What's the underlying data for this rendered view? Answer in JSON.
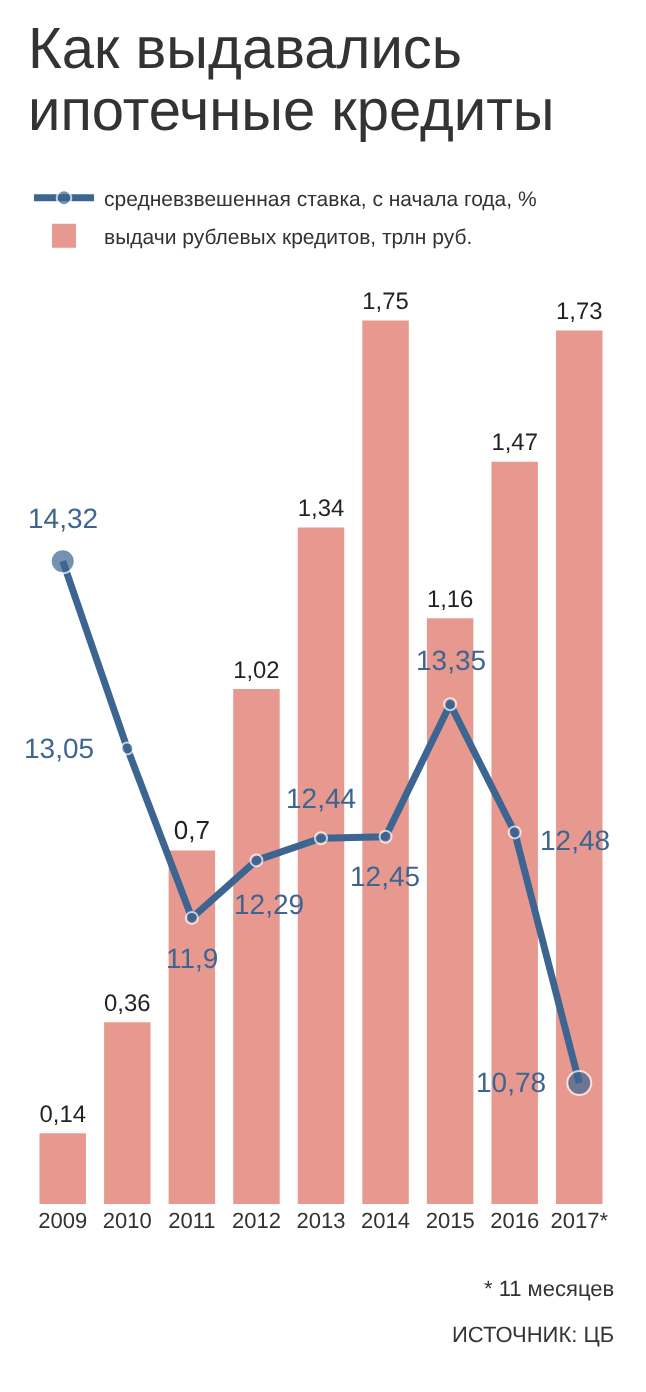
{
  "chart_data": {
    "type": "bar",
    "title": "Как выдавались ипотечные кредиты",
    "categories": [
      "2009",
      "2010",
      "2011",
      "2012",
      "2013",
      "2014",
      "2015",
      "2016",
      "2017*"
    ],
    "series": [
      {
        "name": "выдачи рублевых кредитов, трлн руб.",
        "color": "#e8998f",
        "values": [
          0.14,
          0.36,
          0.7,
          1.02,
          1.34,
          1.75,
          1.16,
          1.47,
          1.73
        ],
        "value_labels": [
          "0,14",
          "0,36",
          "0,7",
          "1,02",
          "1,34",
          "1,75",
          "1,16",
          "1,47",
          "1,73"
        ]
      },
      {
        "type": "line",
        "axis": "y2",
        "name": "средневзвешенная ставка, с начала года, %",
        "color": "#3d6591",
        "values": [
          14.32,
          13.05,
          11.9,
          12.29,
          12.44,
          12.45,
          13.35,
          12.48,
          10.78
        ],
        "value_labels": [
          "14,32",
          "13,05",
          "11,9",
          "12,29",
          "12,44",
          "12,45",
          "13,35",
          "12,48",
          "10,78"
        ]
      }
    ],
    "tick_labels": "x",
    "grid": false,
    "legend": "top",
    "marker": "circle",
    "line_style": "solid",
    "annotations": [
      "* 11 месяцев",
      "ИСТОЧНИК: ЦБ"
    ]
  }
}
